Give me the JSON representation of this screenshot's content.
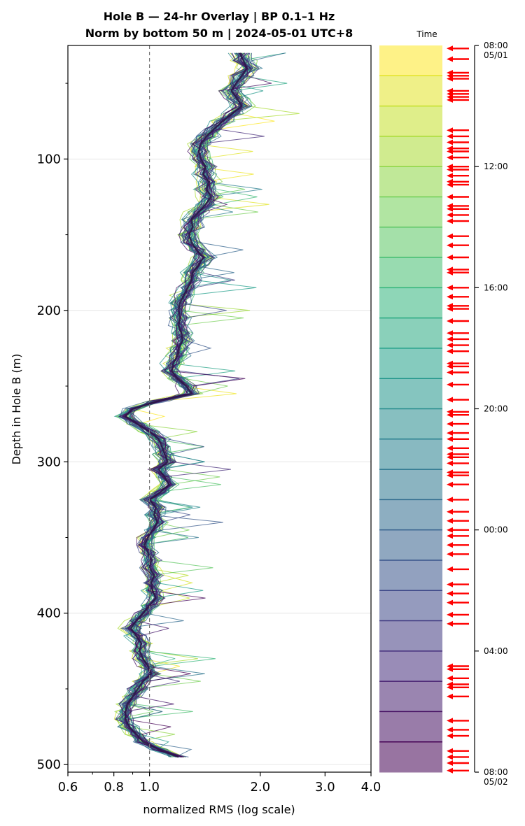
{
  "chart_data": {
    "type": "line",
    "title_line1": "Hole B — 24-hr Overlay  |  BP 0.1–1 Hz",
    "title_line2": "Norm by bottom 50 m  |  2024-05-01 UTC+8",
    "xlabel": "normalized RMS  (log scale)",
    "ylabel": "Depth in Hole B (m)",
    "xscale": "log",
    "xlim": [
      0.6,
      4.0
    ],
    "ylim": [
      505,
      25
    ],
    "x_ticks": [
      "0.6",
      "0.8",
      "1.0",
      "2.0",
      "3.0",
      "4.0"
    ],
    "x_tick_values": [
      0.6,
      0.8,
      1.0,
      2.0,
      3.0,
      4.0
    ],
    "y_ticks": [
      "100",
      "200",
      "300",
      "400",
      "500"
    ],
    "y_tick_values": [
      100,
      200,
      300,
      400,
      500
    ],
    "reference_line": 1.0,
    "grid": "horizontal",
    "depth": [
      30,
      35,
      40,
      45,
      50,
      55,
      60,
      65,
      70,
      75,
      80,
      85,
      90,
      95,
      100,
      105,
      110,
      115,
      120,
      125,
      130,
      135,
      140,
      145,
      150,
      155,
      160,
      165,
      170,
      175,
      180,
      185,
      190,
      195,
      200,
      205,
      210,
      215,
      220,
      225,
      230,
      235,
      240,
      245,
      250,
      255,
      260,
      265,
      270,
      275,
      280,
      285,
      290,
      295,
      300,
      305,
      310,
      315,
      320,
      325,
      330,
      335,
      340,
      345,
      350,
      355,
      360,
      365,
      370,
      375,
      380,
      385,
      390,
      395,
      400,
      405,
      410,
      415,
      420,
      425,
      430,
      435,
      440,
      445,
      450,
      455,
      460,
      465,
      470,
      475,
      480,
      485,
      490,
      495
    ],
    "mean_profile": [
      1.76,
      1.8,
      1.84,
      1.78,
      1.72,
      1.67,
      1.73,
      1.78,
      1.68,
      1.58,
      1.5,
      1.43,
      1.38,
      1.36,
      1.38,
      1.42,
      1.4,
      1.45,
      1.43,
      1.47,
      1.42,
      1.36,
      1.3,
      1.31,
      1.28,
      1.3,
      1.34,
      1.4,
      1.36,
      1.31,
      1.3,
      1.27,
      1.24,
      1.21,
      1.2,
      1.21,
      1.2,
      1.22,
      1.23,
      1.2,
      1.19,
      1.16,
      1.15,
      1.19,
      1.26,
      1.3,
      1.05,
      0.9,
      0.86,
      0.93,
      1.0,
      1.06,
      1.08,
      1.1,
      1.12,
      1.06,
      1.1,
      1.13,
      1.07,
      1.0,
      1.04,
      1.03,
      1.05,
      1.02,
      0.99,
      0.97,
      0.99,
      1.01,
      1.0,
      1.03,
      1.01,
      1.02,
      1.04,
      1.0,
      0.96,
      0.92,
      0.89,
      0.92,
      0.95,
      0.94,
      0.96,
      0.99,
      1.01,
      0.96,
      0.93,
      0.9,
      0.87,
      0.86,
      0.86,
      0.88,
      0.92,
      0.96,
      1.06,
      1.2
    ],
    "series_count": 48,
    "colormap": "viridis",
    "colorbar": {
      "label": "Time",
      "ticks": [
        {
          "line1": "08:00",
          "line2": "05/01",
          "hours": 0
        },
        {
          "line1": "12:00",
          "line2": "",
          "hours": 4
        },
        {
          "line1": "16:00",
          "line2": "",
          "hours": 8
        },
        {
          "line1": "20:00",
          "line2": "",
          "hours": 12
        },
        {
          "line1": "00:00",
          "line2": "",
          "hours": 16
        },
        {
          "line1": "04:00",
          "line2": "",
          "hours": 20
        },
        {
          "line1": "08:00",
          "line2": "05/02",
          "hours": 24
        }
      ],
      "bands": 24,
      "arrow_color": "#ff0000",
      "arrow_hours": [
        0.1,
        0.45,
        0.9,
        1.0,
        1.1,
        1.5,
        1.6,
        1.7,
        1.8,
        2.8,
        3.0,
        3.2,
        3.4,
        3.5,
        3.7,
        4.0,
        4.1,
        4.3,
        4.5,
        4.6,
        5.0,
        5.3,
        5.4,
        5.6,
        5.8,
        6.3,
        6.6,
        7.0,
        7.4,
        7.5,
        8.0,
        8.3,
        8.6,
        8.7,
        9.1,
        9.5,
        9.7,
        9.9,
        10.1,
        10.5,
        10.6,
        10.8,
        11.2,
        11.7,
        12.1,
        12.2,
        12.5,
        12.8,
        13.0,
        13.3,
        13.5,
        13.6,
        13.8,
        14.1,
        14.2,
        14.5,
        15.0,
        15.4,
        15.7,
        16.0,
        16.2,
        16.5,
        16.8,
        17.3,
        17.8,
        18.1,
        18.4,
        18.8,
        19.1,
        20.5,
        20.6,
        20.9,
        21.1,
        21.2,
        21.5,
        22.3,
        22.6,
        22.8,
        23.3,
        23.5,
        23.7,
        23.95
      ]
    }
  }
}
